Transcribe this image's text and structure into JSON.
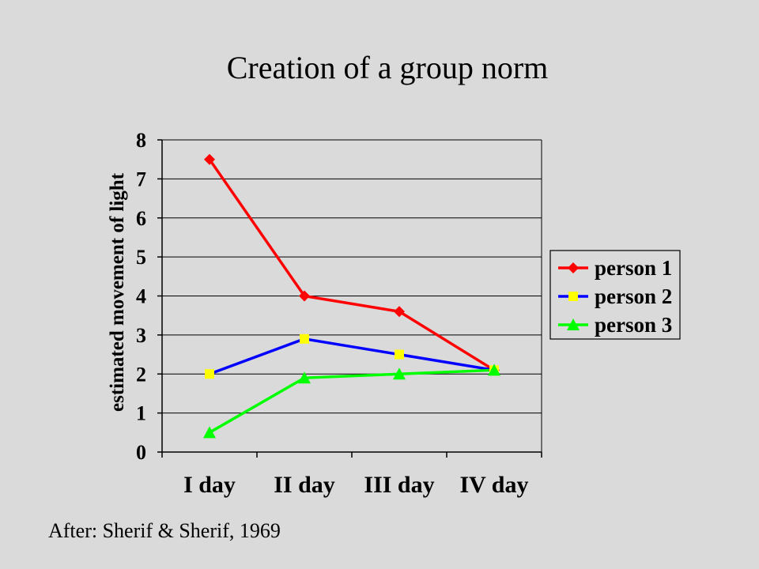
{
  "slide": {
    "title": "Creation of a group norm",
    "caption": "After: Sherif & Sherif, 1969"
  },
  "chart_data": {
    "type": "line",
    "title": "",
    "xlabel": "",
    "ylabel": "estimated movement of light",
    "categories": [
      "I day",
      "II day",
      "III day",
      "IV day"
    ],
    "ylim": [
      0,
      8
    ],
    "yticks": [
      0,
      1,
      2,
      3,
      4,
      5,
      6,
      7,
      8
    ],
    "grid": "horizontal",
    "legend_position": "right",
    "series": [
      {
        "name": "person 1",
        "values": [
          7.5,
          4.0,
          3.6,
          2.1
        ],
        "color": "#ff0000",
        "marker": "diamond",
        "marker_color": "#ff0000"
      },
      {
        "name": "person 2",
        "values": [
          2.0,
          2.9,
          2.5,
          2.1
        ],
        "color": "#0000ff",
        "marker": "square",
        "marker_color": "#ffff00"
      },
      {
        "name": "person 3",
        "values": [
          0.5,
          1.9,
          2.0,
          2.1
        ],
        "color": "#00ff00",
        "marker": "triangle",
        "marker_color": "#00ff00"
      }
    ]
  }
}
